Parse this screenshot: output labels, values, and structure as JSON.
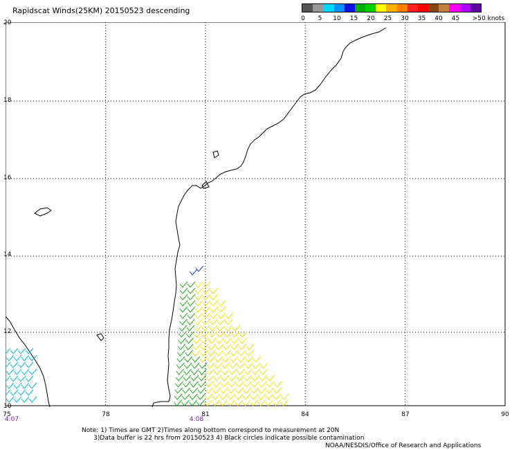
{
  "title": "Rapidscat Winds(25KM) 20150523 descending",
  "legend": {
    "colors": [
      "#555555",
      "#999999",
      "#00d8ff",
      "#0090ff",
      "#1010e0",
      "#00b000",
      "#00d000",
      "#ffff00",
      "#ffb000",
      "#ff8000",
      "#ff2020",
      "#ff0000",
      "#8b4513",
      "#c08040",
      "#ff00ff",
      "#b000ff",
      "#6000a0"
    ],
    "ticks": [
      "0",
      "5",
      "10",
      "15",
      "20",
      "25",
      "30",
      "35",
      "40",
      "45",
      ">50 knots"
    ]
  },
  "axes": {
    "x_labels": [
      "75",
      "78",
      "81",
      "84",
      "87",
      "90"
    ],
    "y_labels": [
      "20",
      "18",
      "16",
      "14",
      "12",
      "10"
    ]
  },
  "times": [
    "4:07",
    "4:08"
  ],
  "notes": {
    "line1": "Note: 1) Times are GMT 2)Times along bottom correspond to measurement at 20N",
    "line2": "      3)Data buffer is 22 hrs from 20150523 4) Black circles indicate possible contamination"
  },
  "credit": "NOAA/NESDIS/Office of Research and Applications"
}
